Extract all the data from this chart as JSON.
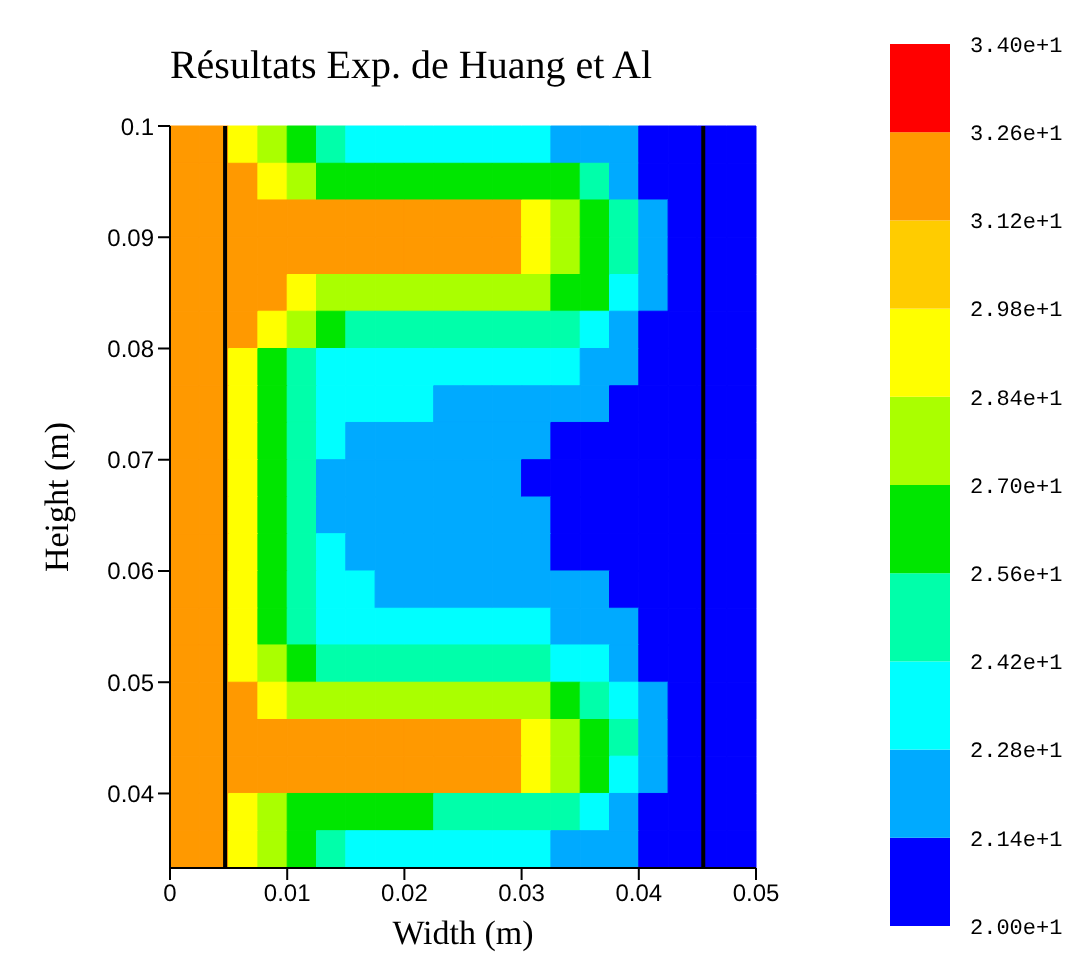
{
  "chart_data": {
    "type": "heatmap",
    "title": "Résultats Exp. de Huang et Al",
    "xlabel": "Width (m)",
    "ylabel": "Height (m)",
    "x": [
      0.00125,
      0.00375,
      0.00625,
      0.00875,
      0.01125,
      0.01375,
      0.01625,
      0.01875,
      0.02125,
      0.02375,
      0.02625,
      0.02875,
      0.03125,
      0.03375,
      0.03625,
      0.03875,
      0.04125,
      0.04375,
      0.04625,
      0.04875
    ],
    "y": [
      0.0983,
      0.095,
      0.0917,
      0.0883,
      0.085,
      0.0817,
      0.0783,
      0.075,
      0.0717,
      0.0683,
      0.065,
      0.0617,
      0.0583,
      0.055,
      0.0517,
      0.0483,
      0.045,
      0.0417,
      0.0383,
      0.035
    ],
    "xlim": [
      0,
      0.05
    ],
    "xticks": [
      0,
      0.01,
      0.02,
      0.03,
      0.04,
      0.05
    ],
    "ylim": [
      0.0333,
      0.1
    ],
    "yticks": [
      0.04,
      0.05,
      0.06,
      0.07,
      0.08,
      0.09,
      0.1
    ],
    "clim": [
      20,
      34
    ],
    "cticks": [
      {
        "value": 20,
        "label": "2.00e+1"
      },
      {
        "value": 21.4,
        "label": "2.14e+1"
      },
      {
        "value": 22.8,
        "label": "2.28e+1"
      },
      {
        "value": 24.2,
        "label": "2.42e+1"
      },
      {
        "value": 25.6,
        "label": "2.56e+1"
      },
      {
        "value": 27,
        "label": "2.70e+1"
      },
      {
        "value": 28.4,
        "label": "2.84e+1"
      },
      {
        "value": 29.8,
        "label": "2.98e+1"
      },
      {
        "value": 31.2,
        "label": "3.12e+1"
      },
      {
        "value": 32.6,
        "label": "3.26e+1"
      },
      {
        "value": 34,
        "label": "3.40e+1"
      }
    ],
    "colors": [
      "#0000ff",
      "#00aaff",
      "#00ffff",
      "#00ffaa",
      "#00e600",
      "#aaff00",
      "#ffff00",
      "#ffcc00",
      "#ff9900",
      "#ff0000"
    ],
    "ref_lines": [
      {
        "axis": "x",
        "value": 0.0047,
        "color": "#000000"
      },
      {
        "axis": "x",
        "value": 0.0455,
        "color": "#000000"
      }
    ],
    "cells": [
      [
        31.9,
        31.9,
        29.1,
        27.7,
        26.3,
        24.9,
        23.5,
        23.5,
        23.5,
        23.5,
        23.5,
        23.5,
        23.5,
        22.1,
        22.1,
        22.1,
        20.7,
        20.7,
        20.7,
        20.7
      ],
      [
        31.9,
        31.9,
        31.9,
        29.1,
        27.7,
        26.3,
        26.3,
        26.3,
        26.3,
        26.3,
        26.3,
        26.3,
        26.3,
        26.3,
        24.9,
        22.1,
        20.7,
        20.7,
        20.7,
        20.7
      ],
      [
        31.9,
        31.9,
        31.9,
        31.9,
        31.9,
        31.9,
        31.9,
        31.9,
        31.9,
        31.9,
        31.9,
        31.9,
        29.1,
        27.7,
        26.3,
        24.9,
        22.1,
        20.7,
        20.7,
        20.7
      ],
      [
        31.9,
        31.9,
        31.9,
        31.9,
        31.9,
        31.9,
        31.9,
        31.9,
        31.9,
        31.9,
        31.9,
        31.9,
        29.1,
        27.7,
        26.3,
        24.9,
        22.1,
        20.7,
        20.7,
        20.7
      ],
      [
        31.9,
        31.9,
        31.9,
        31.9,
        29.1,
        27.7,
        27.7,
        27.7,
        27.7,
        27.7,
        27.7,
        27.7,
        27.7,
        26.3,
        26.3,
        23.5,
        22.1,
        20.7,
        20.7,
        20.7
      ],
      [
        31.9,
        31.9,
        31.9,
        29.1,
        27.7,
        26.3,
        24.9,
        24.9,
        24.9,
        24.9,
        24.9,
        24.9,
        24.9,
        24.9,
        23.5,
        22.1,
        20.7,
        20.7,
        20.7,
        20.7
      ],
      [
        31.9,
        31.9,
        29.1,
        26.3,
        24.9,
        23.5,
        23.5,
        23.5,
        23.5,
        23.5,
        23.5,
        23.5,
        23.5,
        23.5,
        22.1,
        22.1,
        20.7,
        20.7,
        20.7,
        20.7
      ],
      [
        31.9,
        31.9,
        29.1,
        26.3,
        24.9,
        23.5,
        23.5,
        23.5,
        23.5,
        22.1,
        22.1,
        22.1,
        22.1,
        22.1,
        22.1,
        20.7,
        20.7,
        20.7,
        20.7,
        20.7
      ],
      [
        31.9,
        31.9,
        29.1,
        26.3,
        24.9,
        23.5,
        22.1,
        22.1,
        22.1,
        22.1,
        22.1,
        22.1,
        22.1,
        20.7,
        20.7,
        20.7,
        20.7,
        20.7,
        20.7,
        20.7
      ],
      [
        31.9,
        31.9,
        29.1,
        26.3,
        24.9,
        22.1,
        22.1,
        22.1,
        22.1,
        22.1,
        22.1,
        22.1,
        20.7,
        20.7,
        20.7,
        20.7,
        20.7,
        20.7,
        20.7,
        20.7
      ],
      [
        31.9,
        31.9,
        29.1,
        26.3,
        24.9,
        22.1,
        22.1,
        22.1,
        22.1,
        22.1,
        22.1,
        22.1,
        22.1,
        20.7,
        20.7,
        20.7,
        20.7,
        20.7,
        20.7,
        20.7
      ],
      [
        31.9,
        31.9,
        29.1,
        26.3,
        24.9,
        23.5,
        22.1,
        22.1,
        22.1,
        22.1,
        22.1,
        22.1,
        22.1,
        20.7,
        20.7,
        20.7,
        20.7,
        20.7,
        20.7,
        20.7
      ],
      [
        31.9,
        31.9,
        29.1,
        26.3,
        24.9,
        23.5,
        23.5,
        22.1,
        22.1,
        22.1,
        22.1,
        22.1,
        22.1,
        22.1,
        22.1,
        20.7,
        20.7,
        20.7,
        20.7,
        20.7
      ],
      [
        31.9,
        31.9,
        29.1,
        26.3,
        24.9,
        23.5,
        23.5,
        23.5,
        23.5,
        23.5,
        23.5,
        23.5,
        23.5,
        22.1,
        22.1,
        22.1,
        20.7,
        20.7,
        20.7,
        20.7
      ],
      [
        31.9,
        31.9,
        29.1,
        27.7,
        26.3,
        24.9,
        24.9,
        24.9,
        24.9,
        24.9,
        24.9,
        24.9,
        24.9,
        23.5,
        23.5,
        22.1,
        20.7,
        20.7,
        20.7,
        20.7
      ],
      [
        31.9,
        31.9,
        31.9,
        29.1,
        27.7,
        27.7,
        27.7,
        27.7,
        27.7,
        27.7,
        27.7,
        27.7,
        27.7,
        26.3,
        24.9,
        23.5,
        22.1,
        20.7,
        20.7,
        20.7
      ],
      [
        31.9,
        31.9,
        31.9,
        31.9,
        31.9,
        31.9,
        31.9,
        31.9,
        31.9,
        31.9,
        31.9,
        31.9,
        29.1,
        27.7,
        26.3,
        24.9,
        22.1,
        20.7,
        20.7,
        20.7
      ],
      [
        31.9,
        31.9,
        31.9,
        31.9,
        31.9,
        31.9,
        31.9,
        31.9,
        31.9,
        31.9,
        31.9,
        31.9,
        29.1,
        27.7,
        26.3,
        23.5,
        22.1,
        20.7,
        20.7,
        20.7
      ],
      [
        31.9,
        31.9,
        29.1,
        27.7,
        26.3,
        26.3,
        26.3,
        26.3,
        26.3,
        24.9,
        24.9,
        24.9,
        24.9,
        24.9,
        23.5,
        22.1,
        20.7,
        20.7,
        20.7,
        20.7
      ],
      [
        31.9,
        31.9,
        29.1,
        27.7,
        26.3,
        24.9,
        23.5,
        23.5,
        23.5,
        23.5,
        23.5,
        23.5,
        23.5,
        22.1,
        22.1,
        22.1,
        20.7,
        20.7,
        20.7,
        20.7
      ]
    ]
  }
}
